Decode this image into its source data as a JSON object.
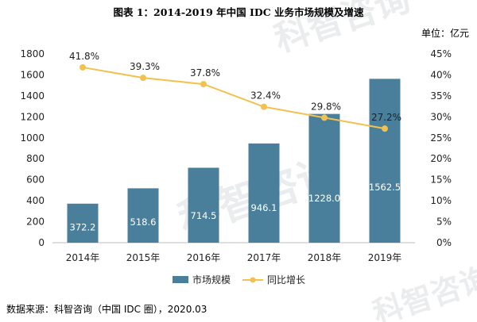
{
  "chart_data": {
    "type": "bar+line",
    "title": "图表 1：2014-2019 年中国 IDC 业务市场规模及增速",
    "unit_label": "单位：亿元",
    "categories": [
      "2014年",
      "2015年",
      "2016年",
      "2017年",
      "2018年",
      "2019年"
    ],
    "series": [
      {
        "name": "市场规模",
        "type": "bar",
        "axis": "left",
        "values": [
          372.2,
          518.6,
          714.5,
          946.1,
          1228.0,
          1562.5
        ],
        "labels": [
          "372.2",
          "518.6",
          "714.5",
          "946.1",
          "1228.0",
          "1562.5"
        ],
        "color": "#4a7f9c"
      },
      {
        "name": "同比增长",
        "type": "line",
        "axis": "right",
        "values": [
          41.8,
          39.3,
          37.8,
          32.4,
          29.8,
          27.2
        ],
        "labels": [
          "41.8%",
          "39.3%",
          "37.8%",
          "32.4%",
          "29.8%",
          "27.2%"
        ],
        "color": "#f2c14e"
      }
    ],
    "y_left": {
      "min": 0,
      "max": 1800,
      "ticks": [
        "0",
        "200",
        "400",
        "600",
        "800",
        "1000",
        "1200",
        "1400",
        "1600",
        "1800"
      ]
    },
    "y_right": {
      "min": 0,
      "max": 45,
      "ticks": [
        "0%",
        "5%",
        "10%",
        "15%",
        "20%",
        "25%",
        "30%",
        "35%",
        "40%",
        "45%"
      ]
    },
    "grid": false,
    "legend_position": "bottom"
  },
  "source": "数据来源：科智咨询（中国 IDC 圈），2020.03",
  "watermark": "科智咨询"
}
